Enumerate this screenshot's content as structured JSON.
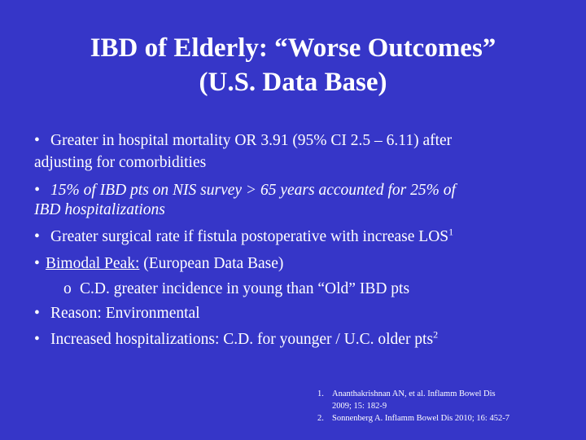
{
  "title": {
    "line1": "IBD of Elderly: “Worse Outcomes”",
    "line2": "(U.S. Data Base)"
  },
  "bullet_symbol": "•",
  "sub_bullet_symbol": "o",
  "bullets": [
    {
      "line1": "Greater in hospital mortality OR 3.91 (95% CI 2.5 – 6.11) after",
      "line2": "adjusting for comorbidities"
    },
    {
      "line1": "15% of IBD pts on NIS survey > 65 years accounted for 25% of",
      "line2": "IBD hospitalizations"
    },
    {
      "text": "Greater surgical rate if fistula postoperative with increase  LOS",
      "sup": "1"
    },
    {
      "underlined": "Bimodal Peak:",
      "text": " (European Data Base)"
    },
    {
      "text": "C.D. greater incidence in young than “Old” IBD pts"
    },
    {
      "text": "Reason: Environmental"
    },
    {
      "text": "Increased hospitalizations: C.D. for younger / U.C. older pts",
      "sup": "2"
    }
  ],
  "references": [
    {
      "num": "1.",
      "line1": "Ananthakrishnan AN, et al. Inflamm Bowel Dis",
      "line2": "2009; 15: 182-9"
    },
    {
      "num": "2.",
      "line1": "Sonnenberg A. Inflamm Bowel Dis 2010; 16: 452-7"
    }
  ]
}
